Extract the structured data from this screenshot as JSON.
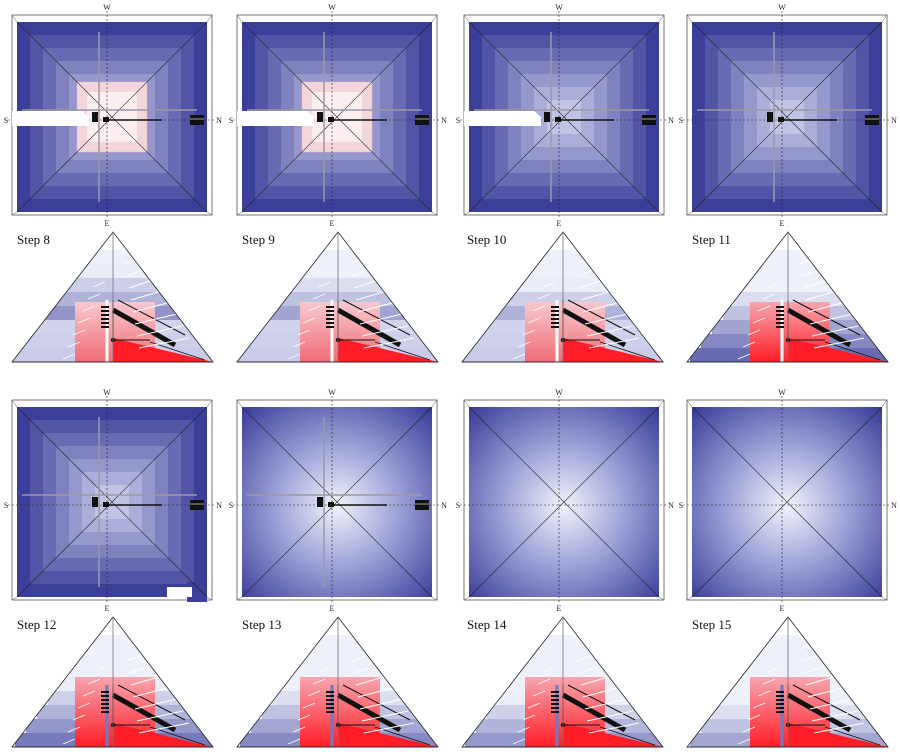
{
  "compass": {
    "top": "W",
    "bottom": "E",
    "left": "S",
    "right": "N"
  },
  "colors": {
    "cold": "#3c3f9a",
    "mid": "#b9bde6",
    "warm": "#f3d6da",
    "hot": "#ff1e28",
    "line": "#333333"
  },
  "panels": [
    {
      "label": "Step 8",
      "plan": "stepped",
      "core": "warm",
      "channel": true,
      "cut": false
    },
    {
      "label": "Step 9",
      "plan": "stepped",
      "core": "warm",
      "channel": true,
      "cut": false
    },
    {
      "label": "Step 10",
      "plan": "stepped",
      "core": "none",
      "channel": true,
      "cut": false
    },
    {
      "label": "Step 11",
      "plan": "stepped",
      "core": "none",
      "channel": false,
      "cut": false
    },
    {
      "label": "Step 12",
      "plan": "stepped",
      "core": "none",
      "channel": false,
      "cut": true
    },
    {
      "label": "Step 13",
      "plan": "smooth",
      "core": "none",
      "channel": false,
      "cut": false
    },
    {
      "label": "Step 14",
      "plan": "smooth",
      "core": "none",
      "channel": false,
      "cut": false
    },
    {
      "label": "Step 15",
      "plan": "smooth",
      "core": "none",
      "channel": false,
      "cut": false
    }
  ]
}
